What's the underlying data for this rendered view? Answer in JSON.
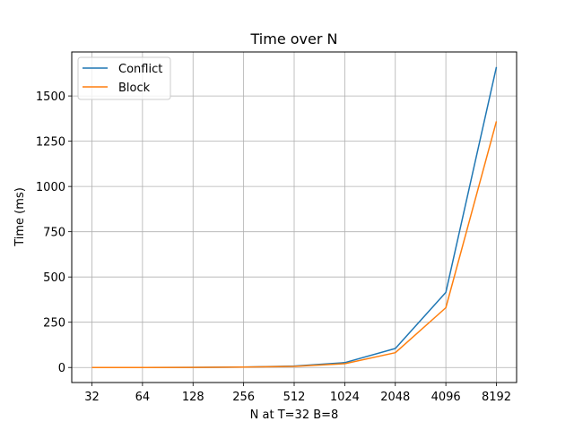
{
  "chart_data": {
    "type": "line",
    "title": "Time over N",
    "xlabel": "N at T=32 B=8",
    "ylabel": "Time (ms)",
    "categories": [
      "32",
      "64",
      "128",
      "256",
      "512",
      "1024",
      "2048",
      "4096",
      "8192"
    ],
    "series": [
      {
        "name": "Conflict",
        "color": "#1f77b4",
        "values": [
          0.1,
          0.3,
          0.8,
          2.5,
          8,
          27,
          105,
          415,
          1660
        ]
      },
      {
        "name": "Block",
        "color": "#ff7f0e",
        "values": [
          0.1,
          0.2,
          0.6,
          2,
          6,
          21,
          82,
          330,
          1360
        ]
      }
    ],
    "yticks": [
      0,
      250,
      500,
      750,
      1000,
      1250,
      1500
    ],
    "ylim": [
      -83,
      1743
    ],
    "grid": true,
    "legend": "top-left"
  }
}
